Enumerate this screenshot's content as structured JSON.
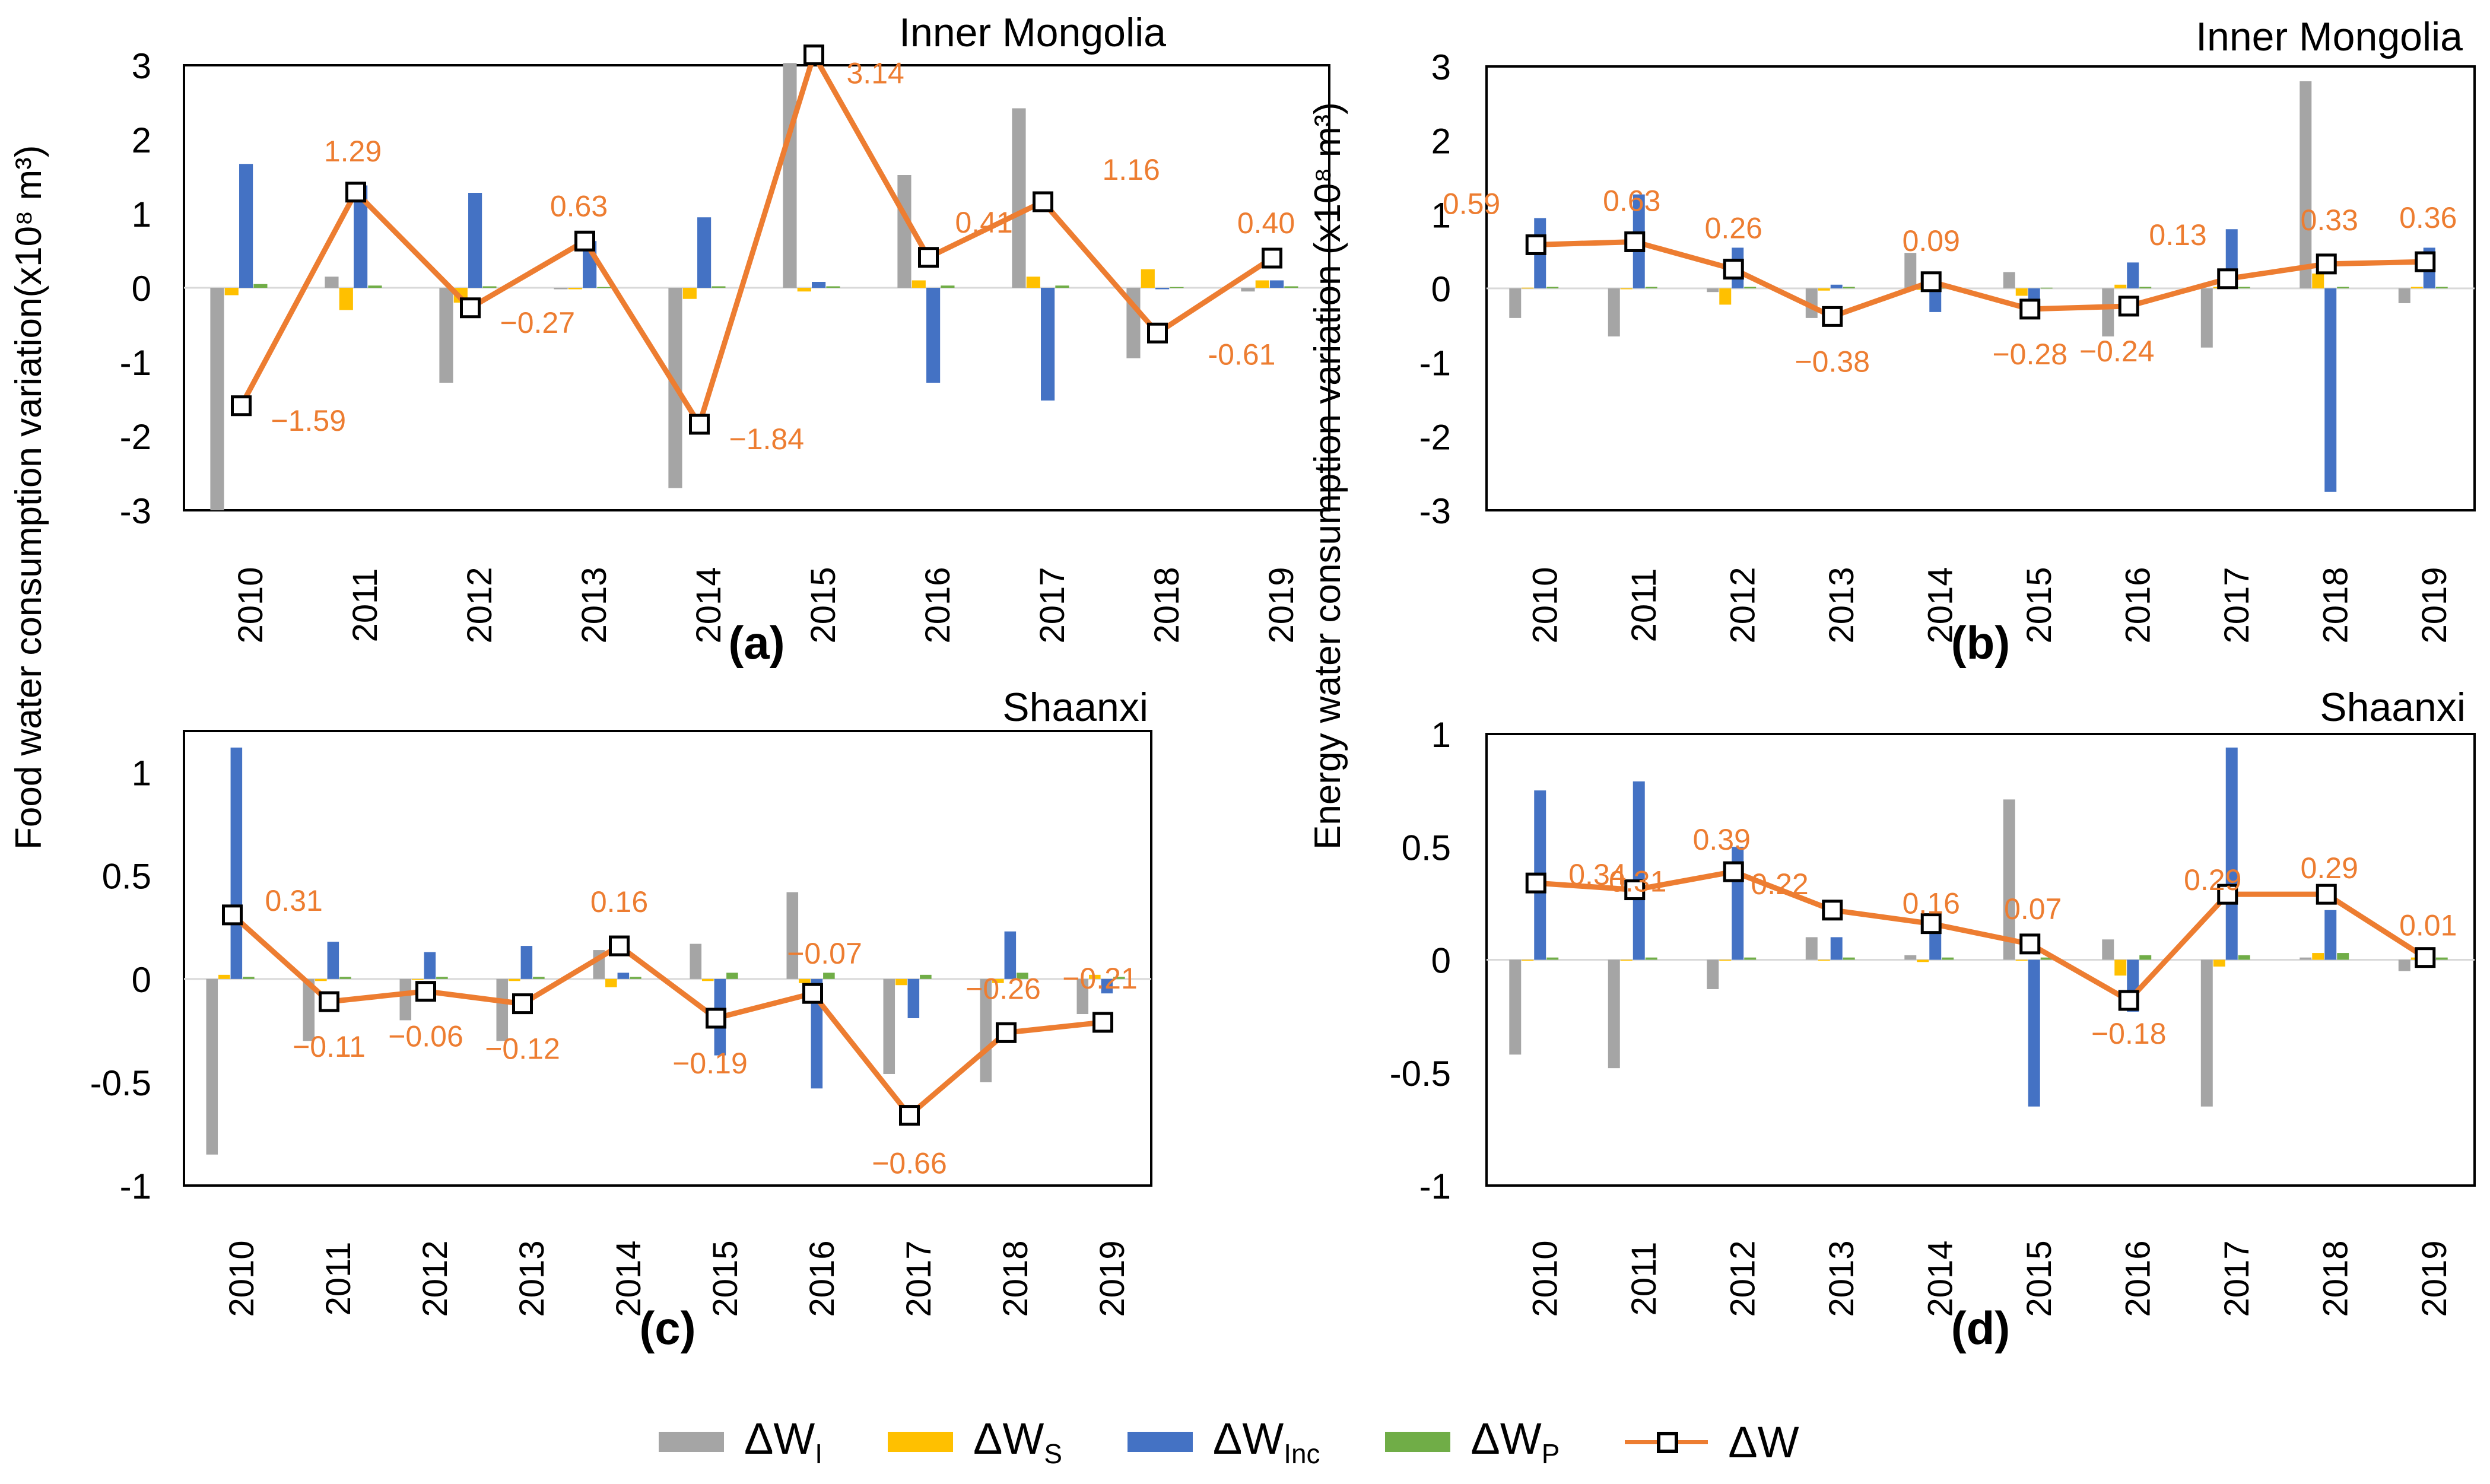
{
  "colors": {
    "dW_I": "#A5A5A5",
    "dW_S": "#FFC000",
    "dW_Inc": "#4472C4",
    "dW_P": "#70AD47",
    "dW": "#ED7D31",
    "label": "#ED7D31"
  },
  "y_labels": {
    "food": "Food water consumption variation(x10⁸ m³)",
    "energy": "Energy water consumption variation (x10⁸ m³)"
  },
  "legend": {
    "dW_I": {
      "base": "ΔW",
      "sub": "I"
    },
    "dW_S": {
      "base": "ΔW",
      "sub": "S"
    },
    "dW_Inc": {
      "base": "ΔW",
      "sub": "Inc"
    },
    "dW_P": {
      "base": "ΔW",
      "sub": "P"
    },
    "dW": {
      "base": "ΔW",
      "sub": ""
    }
  },
  "chart_data": [
    {
      "id": "a",
      "type": "bar",
      "title": "Inner Mongolia",
      "panel_label": "(a)",
      "categories": [
        "2010",
        "2011",
        "2012",
        "2013",
        "2014",
        "2015",
        "2016",
        "2017",
        "2018",
        "2019"
      ],
      "ylim": [
        -3,
        3
      ],
      "yticks": [
        "-3",
        "-2",
        "-1",
        "0",
        "1",
        "2",
        "3"
      ],
      "series": [
        {
          "name": "ΔWI",
          "key": "dW_I",
          "values": [
            -3.0,
            0.15,
            -1.28,
            -0.02,
            -2.7,
            3.03,
            1.52,
            2.42,
            -0.95,
            -0.05
          ]
        },
        {
          "name": "ΔWS",
          "key": "dW_S",
          "values": [
            -0.1,
            -0.3,
            -0.2,
            -0.02,
            -0.15,
            -0.05,
            0.1,
            0.15,
            0.25,
            0.1
          ]
        },
        {
          "name": "ΔWInc",
          "key": "dW_Inc",
          "values": [
            1.67,
            1.38,
            1.28,
            0.63,
            0.95,
            0.08,
            -1.28,
            -1.52,
            -0.02,
            0.1
          ]
        },
        {
          "name": "ΔWP",
          "key": "dW_P",
          "values": [
            0.05,
            0.03,
            0.02,
            0.01,
            0.02,
            0.02,
            0.03,
            0.03,
            0.01,
            0.02
          ]
        }
      ],
      "line": {
        "name": "ΔW",
        "values": [
          -1.59,
          1.29,
          -0.27,
          0.63,
          -1.84,
          3.14,
          0.41,
          1.16,
          -0.61,
          0.4
        ]
      },
      "data_labels": [
        "−1.59",
        "1.29",
        "−0.27",
        "0.63",
        "−1.84",
        "3.14",
        "0.41",
        "1.16",
        "-0.61",
        "0.40"
      ]
    },
    {
      "id": "b",
      "type": "bar",
      "title": "Inner Mongolia",
      "panel_label": "(b)",
      "categories": [
        "2010",
        "2011",
        "2012",
        "2013",
        "2014",
        "2015",
        "2016",
        "2017",
        "2018",
        "2019"
      ],
      "ylim": [
        -3,
        3
      ],
      "yticks": [
        "-3",
        "-2",
        "-1",
        "0",
        "1",
        "2",
        "3"
      ],
      "series": [
        {
          "name": "ΔWI",
          "key": "dW_I",
          "values": [
            -0.4,
            -0.65,
            -0.05,
            -0.4,
            0.48,
            0.22,
            -0.65,
            -0.8,
            2.8,
            -0.2
          ]
        },
        {
          "name": "ΔWS",
          "key": "dW_S",
          "values": [
            0.01,
            -0.01,
            -0.22,
            -0.03,
            -0.02,
            -0.1,
            0.05,
            0.02,
            0.2,
            0.02
          ]
        },
        {
          "name": "ΔWInc",
          "key": "dW_Inc",
          "values": [
            0.95,
            1.27,
            0.55,
            0.05,
            -0.32,
            -0.33,
            0.35,
            0.8,
            -2.75,
            0.55
          ]
        },
        {
          "name": "ΔWP",
          "key": "dW_P",
          "values": [
            0.02,
            0.02,
            0.02,
            0.02,
            0.01,
            0.01,
            0.02,
            0.02,
            0.02,
            0.02
          ]
        }
      ],
      "line": {
        "name": "ΔW",
        "values": [
          0.59,
          0.63,
          0.26,
          -0.38,
          0.09,
          -0.28,
          -0.24,
          0.13,
          0.33,
          0.36
        ]
      },
      "data_labels": [
        "0.59",
        "0.63",
        "0.26",
        "−0.38",
        "0.09",
        "−0.28",
        "−0.24",
        "0.13",
        "0.33",
        "0.36"
      ]
    },
    {
      "id": "c",
      "type": "bar",
      "title": "Shaanxi",
      "panel_label": "(c)",
      "categories": [
        "2010",
        "2011",
        "2012",
        "2013",
        "2014",
        "2015",
        "2016",
        "2017",
        "2018",
        "2019"
      ],
      "ylim": [
        -1,
        1.2
      ],
      "yticks": [
        "-1",
        "-0.5",
        "0",
        "0.5",
        "1"
      ],
      "yticks_values": [
        -1,
        -0.5,
        0,
        0.5,
        1
      ],
      "series": [
        {
          "name": "ΔWI",
          "key": "dW_I",
          "values": [
            -0.85,
            -0.3,
            -0.2,
            -0.3,
            0.14,
            0.17,
            0.42,
            -0.46,
            -0.5,
            -0.17
          ]
        },
        {
          "name": "ΔWS",
          "key": "dW_S",
          "values": [
            0.02,
            -0.01,
            0.0,
            -0.01,
            -0.04,
            -0.01,
            -0.02,
            -0.03,
            -0.02,
            0.02
          ]
        },
        {
          "name": "ΔWInc",
          "key": "dW_Inc",
          "values": [
            1.12,
            0.18,
            0.13,
            0.16,
            0.03,
            -0.37,
            -0.53,
            -0.19,
            0.23,
            -0.07
          ]
        },
        {
          "name": "ΔWP",
          "key": "dW_P",
          "values": [
            0.01,
            0.01,
            0.01,
            0.01,
            0.01,
            0.03,
            0.03,
            0.02,
            0.03,
            0.01
          ]
        }
      ],
      "line": {
        "name": "ΔW",
        "values": [
          0.31,
          -0.11,
          -0.06,
          -0.12,
          0.16,
          -0.19,
          -0.07,
          -0.66,
          -0.26,
          -0.21
        ]
      },
      "data_labels": [
        "0.31",
        "−0.11",
        "−0.06",
        "−0.12",
        "0.16",
        "−0.19",
        "−0.07",
        "−0.66",
        "−0.26",
        "−0.21"
      ]
    },
    {
      "id": "d",
      "type": "bar",
      "title": "Shaanxi",
      "panel_label": "(d)",
      "categories": [
        "2010",
        "2011",
        "2012",
        "2013",
        "2014",
        "2015",
        "2016",
        "2017",
        "2018",
        "2019"
      ],
      "ylim": [
        -1,
        1
      ],
      "yticks": [
        "-1",
        "-0.5",
        "0",
        "0.5",
        "1"
      ],
      "yticks_values": [
        -1,
        -0.5,
        0,
        0.5,
        1
      ],
      "series": [
        {
          "name": "ΔWI",
          "key": "dW_I",
          "values": [
            -0.42,
            -0.48,
            -0.13,
            0.1,
            0.02,
            0.71,
            0.09,
            -0.65,
            0.01,
            -0.05
          ]
        },
        {
          "name": "ΔWS",
          "key": "dW_S",
          "values": [
            0.0,
            0.0,
            0.0,
            0.0,
            -0.01,
            0.0,
            -0.07,
            -0.03,
            0.03,
            0.01
          ]
        },
        {
          "name": "ΔWInc",
          "key": "dW_Inc",
          "values": [
            0.75,
            0.79,
            0.5,
            0.1,
            0.13,
            -0.65,
            -0.23,
            0.94,
            0.22,
            0.01
          ]
        },
        {
          "name": "ΔWP",
          "key": "dW_P",
          "values": [
            0.01,
            0.01,
            0.01,
            0.01,
            0.01,
            0.01,
            0.02,
            0.02,
            0.03,
            0.01
          ]
        }
      ],
      "line": {
        "name": "ΔW",
        "values": [
          0.34,
          0.31,
          0.39,
          0.22,
          0.16,
          0.07,
          -0.18,
          0.29,
          0.29,
          0.01
        ]
      },
      "data_labels": [
        "0.34",
        "0.31",
        "0.39",
        "0.22",
        "0.16",
        "0.07",
        "−0.18",
        "0.29",
        "0.29",
        "0.01"
      ]
    }
  ]
}
